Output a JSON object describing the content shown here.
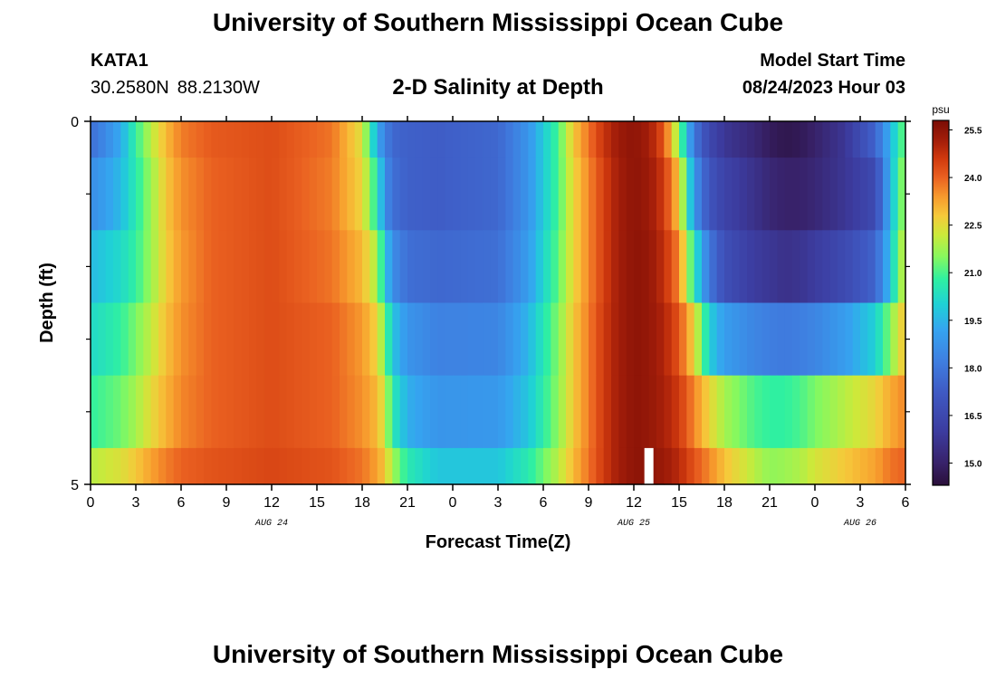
{
  "header": {
    "title": "University of Southern Mississippi Ocean Cube",
    "station_id": "KATA1",
    "latitude": "30.2580N",
    "longitude": "88.2130W",
    "chart_title": "2-D Salinity at Depth",
    "model_start_label": "Model Start Time",
    "model_start_value": "08/24/2023 Hour 03"
  },
  "footer": {
    "title": "University of Southern Mississippi Ocean Cube"
  },
  "chart_data": {
    "type": "heatmap",
    "title": "2-D Salinity at Depth",
    "xlabel": "Forecast Time(Z)",
    "ylabel": "Depth (ft)",
    "x_tick_labels": [
      "0",
      "3",
      "6",
      "9",
      "12",
      "15",
      "18",
      "21",
      "0",
      "3",
      "6",
      "9",
      "12",
      "15",
      "18",
      "21",
      "0",
      "3",
      "6"
    ],
    "x_range_hours": [
      0,
      54
    ],
    "date_labels": [
      {
        "label": "AUG 24",
        "hour": 12
      },
      {
        "label": "AUG 25",
        "hour": 36
      },
      {
        "label": "AUG 26",
        "hour": 51
      }
    ],
    "y_tick_labels": [
      {
        "label": "0",
        "depth": 0
      },
      {
        "label": "5",
        "depth": 5
      }
    ],
    "y_range_ft": [
      0,
      5
    ],
    "y_minor_ticks": [
      1,
      2,
      3,
      4
    ],
    "depth_bands": [
      {
        "top": 0.0,
        "bottom": 0.5
      },
      {
        "top": 0.5,
        "bottom": 1.5
      },
      {
        "top": 1.5,
        "bottom": 2.5
      },
      {
        "top": 2.5,
        "bottom": 3.5
      },
      {
        "top": 3.5,
        "bottom": 4.5
      },
      {
        "top": 4.5,
        "bottom": 5.0
      }
    ],
    "salinity_keyframes": {
      "hours": [
        0,
        2,
        3,
        4,
        5,
        6,
        8,
        12,
        16,
        18,
        19,
        19.5,
        20,
        21,
        23,
        27,
        29,
        31,
        32,
        33,
        34,
        35,
        36,
        37,
        38,
        39,
        40,
        41,
        42,
        44,
        45,
        46,
        47,
        48,
        50,
        52,
        53,
        54
      ],
      "bands": [
        [
          17.8,
          19.3,
          20.8,
          22.0,
          23.0,
          23.7,
          24.1,
          24.3,
          23.8,
          22.4,
          19.3,
          18.3,
          17.6,
          17.4,
          17.3,
          17.6,
          18.8,
          21.0,
          22.8,
          23.8,
          24.7,
          25.3,
          25.5,
          25.2,
          24.2,
          21.5,
          18.0,
          16.5,
          15.8,
          15.2,
          14.8,
          14.6,
          14.7,
          15.0,
          15.8,
          17.5,
          19.5,
          21.5
        ],
        [
          18.6,
          19.6,
          20.6,
          21.7,
          22.8,
          23.5,
          24.0,
          24.3,
          23.7,
          22.6,
          20.5,
          18.7,
          17.8,
          17.4,
          17.3,
          17.6,
          18.8,
          21.0,
          22.6,
          23.6,
          24.5,
          25.2,
          25.5,
          25.3,
          24.6,
          22.8,
          18.8,
          17.0,
          16.3,
          15.6,
          15.2,
          15.0,
          15.0,
          15.2,
          15.8,
          16.6,
          19.5,
          22.0
        ],
        [
          19.6,
          20.2,
          20.8,
          21.7,
          22.7,
          23.4,
          24.0,
          24.3,
          23.8,
          23.0,
          21.8,
          20.0,
          18.6,
          17.8,
          17.6,
          17.8,
          19.0,
          21.2,
          22.6,
          23.6,
          24.5,
          25.2,
          25.5,
          25.4,
          24.8,
          23.6,
          20.5,
          18.0,
          16.8,
          16.0,
          15.8,
          15.6,
          15.7,
          16.0,
          16.6,
          17.5,
          19.8,
          22.5
        ],
        [
          20.2,
          20.8,
          21.4,
          22.1,
          22.9,
          23.5,
          24.0,
          24.3,
          24.0,
          23.4,
          22.6,
          21.3,
          19.8,
          18.8,
          18.3,
          18.4,
          19.5,
          21.5,
          22.8,
          23.7,
          24.6,
          25.2,
          25.5,
          25.4,
          25.0,
          24.2,
          22.6,
          20.0,
          19.0,
          18.4,
          18.2,
          18.1,
          18.2,
          18.4,
          19.0,
          20.0,
          21.5,
          23.0
        ],
        [
          20.8,
          21.3,
          21.8,
          22.5,
          23.1,
          23.6,
          24.0,
          24.3,
          24.0,
          23.5,
          23.0,
          22.2,
          20.6,
          19.4,
          18.8,
          18.9,
          19.8,
          21.6,
          22.8,
          23.7,
          24.6,
          25.2,
          25.5,
          25.4,
          25.1,
          24.6,
          23.6,
          22.6,
          21.8,
          21.0,
          20.8,
          20.8,
          21.0,
          21.4,
          22.0,
          22.6,
          23.2,
          23.6
        ],
        [
          22.0,
          22.4,
          22.8,
          23.3,
          23.7,
          24.0,
          24.2,
          24.4,
          24.2,
          23.8,
          23.3,
          22.8,
          21.8,
          20.6,
          19.8,
          19.8,
          20.6,
          22.0,
          23.0,
          23.8,
          24.6,
          25.2,
          25.5,
          25.5,
          25.3,
          24.9,
          24.2,
          23.6,
          22.9,
          22.0,
          21.6,
          21.7,
          21.9,
          22.3,
          22.8,
          23.3,
          23.8,
          24.0
        ]
      ]
    },
    "missing_data": [
      {
        "hour_start": 36.7,
        "hour_end": 37.3,
        "depth_top": 4.5,
        "depth_bottom": 5.0
      }
    ],
    "colorbar": {
      "unit": "psu",
      "min": 14.3,
      "max": 25.8,
      "tick_labels": [
        "25.5",
        "24.0",
        "22.5",
        "21.0",
        "19.5",
        "18.0",
        "16.5",
        "15.0"
      ],
      "tick_values": [
        25.5,
        24.0,
        22.5,
        21.0,
        19.5,
        18.0,
        16.5,
        15.0
      ]
    },
    "colormap": [
      {
        "v": 14.3,
        "color": "#2a0f3a"
      },
      {
        "v": 15.0,
        "color": "#38226a"
      },
      {
        "v": 16.0,
        "color": "#3c3c9f"
      },
      {
        "v": 17.2,
        "color": "#3f59c3"
      },
      {
        "v": 18.2,
        "color": "#3f7ee0"
      },
      {
        "v": 19.2,
        "color": "#35a4f0"
      },
      {
        "v": 20.0,
        "color": "#1fd1d6"
      },
      {
        "v": 20.8,
        "color": "#2ff0a1"
      },
      {
        "v": 21.5,
        "color": "#87f85e"
      },
      {
        "v": 22.2,
        "color": "#cce93a"
      },
      {
        "v": 22.8,
        "color": "#f6c93a"
      },
      {
        "v": 23.4,
        "color": "#f79a2d"
      },
      {
        "v": 24.0,
        "color": "#ea6121"
      },
      {
        "v": 24.6,
        "color": "#d0390e"
      },
      {
        "v": 25.1,
        "color": "#a8200a"
      },
      {
        "v": 25.8,
        "color": "#7a0c05"
      }
    ]
  }
}
